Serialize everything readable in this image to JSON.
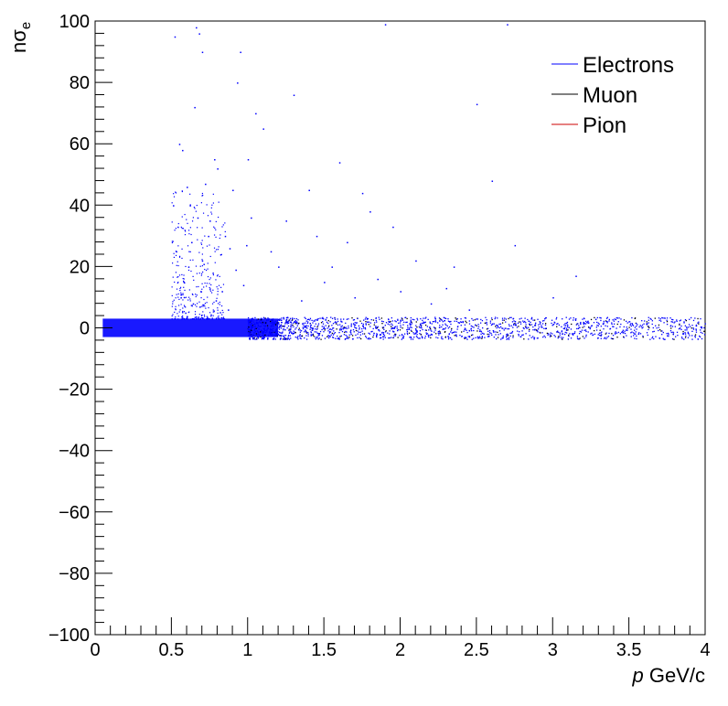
{
  "chart_data": {
    "type": "scatter",
    "title": "",
    "xlabel": {
      "italic": "p",
      "rest": " GeV/c"
    },
    "ylabel": {
      "base": "n",
      "sigma": "σ",
      "sub": "e"
    },
    "xlim": [
      0,
      4
    ],
    "ylim": [
      -100,
      100
    ],
    "x_ticks": [
      {
        "value": 0,
        "label": "0"
      },
      {
        "value": 0.5,
        "label": "0.5"
      },
      {
        "value": 1,
        "label": "1"
      },
      {
        "value": 1.5,
        "label": "1.5"
      },
      {
        "value": 2,
        "label": "2"
      },
      {
        "value": 2.5,
        "label": "2.5"
      },
      {
        "value": 3,
        "label": "3"
      },
      {
        "value": 3.5,
        "label": "3.5"
      },
      {
        "value": 4,
        "label": "4"
      }
    ],
    "y_ticks": [
      {
        "value": 100,
        "label": "100"
      },
      {
        "value": 80,
        "label": "80"
      },
      {
        "value": 60,
        "label": "60"
      },
      {
        "value": 40,
        "label": "40"
      },
      {
        "value": 20,
        "label": "20"
      },
      {
        "value": 0,
        "label": "0"
      },
      {
        "value": -20,
        "label": "−20"
      },
      {
        "value": -40,
        "label": "−40"
      },
      {
        "value": -60,
        "label": "−60"
      },
      {
        "value": -80,
        "label": "−80"
      },
      {
        "value": -100,
        "label": "−100"
      }
    ],
    "grid": false,
    "legend_position": "top-right",
    "series": [
      {
        "name": "Electrons",
        "color": "#0000ff",
        "band": {
          "x_start": 0.05,
          "x_end": 4.0,
          "y_center": 0,
          "y_halfwidth": 3
        },
        "scatter_points": [
          [
            0.52,
            95
          ],
          [
            0.55,
            60
          ],
          [
            0.57,
            58
          ],
          [
            0.6,
            46
          ],
          [
            0.62,
            40
          ],
          [
            0.65,
            72
          ],
          [
            0.66,
            98
          ],
          [
            0.68,
            96
          ],
          [
            0.7,
            90
          ],
          [
            0.72,
            47
          ],
          [
            0.75,
            35
          ],
          [
            0.78,
            55
          ],
          [
            0.8,
            52
          ],
          [
            0.85,
            30
          ],
          [
            0.9,
            45
          ],
          [
            0.93,
            80
          ],
          [
            0.95,
            90
          ],
          [
            1.0,
            55
          ],
          [
            1.05,
            70
          ],
          [
            1.1,
            65
          ],
          [
            1.15,
            25
          ],
          [
            1.2,
            20
          ],
          [
            1.3,
            76
          ],
          [
            1.4,
            45
          ],
          [
            1.5,
            15
          ],
          [
            1.55,
            20
          ],
          [
            1.6,
            54
          ],
          [
            1.7,
            10
          ],
          [
            1.8,
            38
          ],
          [
            1.9,
            99
          ],
          [
            2.0,
            12
          ],
          [
            2.1,
            22
          ],
          [
            2.3,
            13
          ],
          [
            2.5,
            73
          ],
          [
            2.6,
            48
          ],
          [
            2.7,
            99
          ],
          [
            2.75,
            27
          ],
          [
            3.0,
            10
          ],
          [
            3.15,
            17
          ],
          [
            0.53,
            25
          ],
          [
            0.58,
            15
          ],
          [
            0.63,
            28
          ],
          [
            0.7,
            22
          ],
          [
            0.77,
            18
          ],
          [
            0.83,
            12
          ],
          [
            0.88,
            26
          ],
          [
            0.97,
            14
          ],
          [
            1.02,
            36
          ],
          [
            1.25,
            35
          ],
          [
            1.35,
            9
          ],
          [
            1.45,
            30
          ],
          [
            1.65,
            28
          ],
          [
            1.75,
            44
          ],
          [
            1.85,
            16
          ],
          [
            1.95,
            33
          ],
          [
            2.2,
            8
          ],
          [
            2.35,
            20
          ],
          [
            2.45,
            6
          ],
          [
            0.51,
            40
          ],
          [
            0.54,
            33
          ],
          [
            0.56,
            10
          ],
          [
            0.59,
            5
          ],
          [
            0.61,
            20
          ],
          [
            0.64,
            8
          ],
          [
            0.67,
            36
          ],
          [
            0.69,
            12
          ],
          [
            0.74,
            30
          ],
          [
            0.79,
            9
          ],
          [
            0.82,
            24
          ],
          [
            0.87,
            6
          ],
          [
            0.92,
            19
          ],
          [
            0.99,
            27
          ]
        ]
      },
      {
        "name": "Muon",
        "color": "#000000"
      },
      {
        "name": "Pion",
        "color": "#cc0000"
      }
    ]
  }
}
